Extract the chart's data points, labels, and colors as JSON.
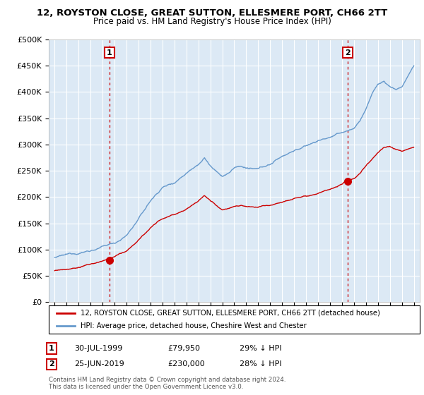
{
  "title": "12, ROYSTON CLOSE, GREAT SUTTON, ELLESMERE PORT, CH66 2TT",
  "subtitle": "Price paid vs. HM Land Registry's House Price Index (HPI)",
  "legend_label_red": "12, ROYSTON CLOSE, GREAT SUTTON, ELLESMERE PORT, CH66 2TT (detached house)",
  "legend_label_blue": "HPI: Average price, detached house, Cheshire West and Chester",
  "annotation1_label": "1",
  "annotation1_date": "30-JUL-1999",
  "annotation1_price": "£79,950",
  "annotation1_hpi": "29% ↓ HPI",
  "annotation2_label": "2",
  "annotation2_date": "25-JUN-2019",
  "annotation2_price": "£230,000",
  "annotation2_hpi": "28% ↓ HPI",
  "footnote": "Contains HM Land Registry data © Crown copyright and database right 2024.\nThis data is licensed under the Open Government Licence v3.0.",
  "sale1_year": 1999.57,
  "sale1_price": 79950,
  "sale2_year": 2019.48,
  "sale2_price": 230000,
  "ylim": [
    0,
    500000
  ],
  "yticks": [
    0,
    50000,
    100000,
    150000,
    200000,
    250000,
    300000,
    350000,
    400000,
    450000,
    500000
  ],
  "background_color": "#ffffff",
  "plot_bg_color": "#dce9f5",
  "grid_color": "#ffffff",
  "red_color": "#cc0000",
  "blue_color": "#6699cc",
  "vline_color": "#cc0000",
  "hpi_keypoints": [
    [
      1995.0,
      85000
    ],
    [
      1996.0,
      88000
    ],
    [
      1997.0,
      93000
    ],
    [
      1998.0,
      99000
    ],
    [
      1999.0,
      105000
    ],
    [
      2000.0,
      112000
    ],
    [
      2001.0,
      127000
    ],
    [
      2002.0,
      158000
    ],
    [
      2003.0,
      192000
    ],
    [
      2004.0,
      218000
    ],
    [
      2005.0,
      228000
    ],
    [
      2006.0,
      248000
    ],
    [
      2007.0,
      268000
    ],
    [
      2007.5,
      280000
    ],
    [
      2008.0,
      265000
    ],
    [
      2008.5,
      252000
    ],
    [
      2009.0,
      243000
    ],
    [
      2009.5,
      248000
    ],
    [
      2010.0,
      258000
    ],
    [
      2010.5,
      262000
    ],
    [
      2011.0,
      258000
    ],
    [
      2011.5,
      255000
    ],
    [
      2012.0,
      253000
    ],
    [
      2012.5,
      258000
    ],
    [
      2013.0,
      262000
    ],
    [
      2014.0,
      278000
    ],
    [
      2015.0,
      290000
    ],
    [
      2016.0,
      298000
    ],
    [
      2017.0,
      308000
    ],
    [
      2018.0,
      315000
    ],
    [
      2019.0,
      322000
    ],
    [
      2020.0,
      330000
    ],
    [
      2020.5,
      345000
    ],
    [
      2021.0,
      368000
    ],
    [
      2021.5,
      395000
    ],
    [
      2022.0,
      415000
    ],
    [
      2022.5,
      420000
    ],
    [
      2023.0,
      410000
    ],
    [
      2023.5,
      405000
    ],
    [
      2024.0,
      410000
    ],
    [
      2024.5,
      430000
    ],
    [
      2025.0,
      450000
    ]
  ],
  "red_keypoints": [
    [
      1995.0,
      60000
    ],
    [
      1996.0,
      62000
    ],
    [
      1997.0,
      65000
    ],
    [
      1998.0,
      70000
    ],
    [
      1999.0,
      76000
    ],
    [
      1999.57,
      79950
    ],
    [
      2000.0,
      83000
    ],
    [
      2001.0,
      94000
    ],
    [
      2002.0,
      115000
    ],
    [
      2003.0,
      138000
    ],
    [
      2004.0,
      155000
    ],
    [
      2005.0,
      163000
    ],
    [
      2006.0,
      175000
    ],
    [
      2007.0,
      190000
    ],
    [
      2007.5,
      200000
    ],
    [
      2008.0,
      190000
    ],
    [
      2008.5,
      182000
    ],
    [
      2009.0,
      175000
    ],
    [
      2009.5,
      178000
    ],
    [
      2010.0,
      182000
    ],
    [
      2010.5,
      184000
    ],
    [
      2011.0,
      182000
    ],
    [
      2011.5,
      180000
    ],
    [
      2012.0,
      178000
    ],
    [
      2012.5,
      181000
    ],
    [
      2013.0,
      183000
    ],
    [
      2014.0,
      192000
    ],
    [
      2015.0,
      200000
    ],
    [
      2016.0,
      206000
    ],
    [
      2017.0,
      212000
    ],
    [
      2018.0,
      218000
    ],
    [
      2019.0,
      225000
    ],
    [
      2019.48,
      230000
    ],
    [
      2020.0,
      235000
    ],
    [
      2020.5,
      245000
    ],
    [
      2021.0,
      260000
    ],
    [
      2021.5,
      272000
    ],
    [
      2022.0,
      285000
    ],
    [
      2022.5,
      295000
    ],
    [
      2023.0,
      298000
    ],
    [
      2023.5,
      292000
    ],
    [
      2024.0,
      288000
    ],
    [
      2024.5,
      292000
    ],
    [
      2025.0,
      295000
    ]
  ]
}
